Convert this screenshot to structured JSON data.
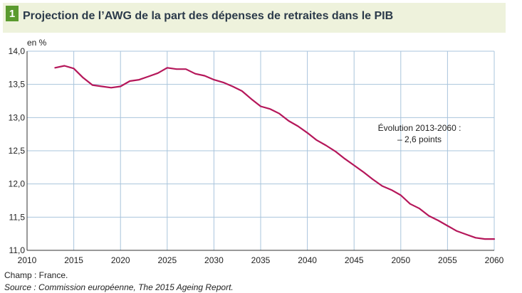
{
  "header": {
    "number": "1",
    "title": "Projection de l’AWG de la part des dépenses de retraites dans le PIB"
  },
  "chart_data": {
    "type": "line",
    "ylabel": "en %",
    "xlim": [
      2010,
      2060
    ],
    "ylim": [
      11.0,
      14.0
    ],
    "x_ticks": [
      2010,
      2015,
      2020,
      2025,
      2030,
      2035,
      2040,
      2045,
      2050,
      2055,
      2060
    ],
    "y_ticks": [
      11.0,
      11.5,
      12.0,
      12.5,
      13.0,
      13.5,
      14.0
    ],
    "y_tick_labels": [
      "11,0",
      "11,5",
      "12,0",
      "12,5",
      "13,0",
      "13,5",
      "14,0"
    ],
    "grid": true,
    "line_color": "#b5175a",
    "annotation": {
      "line1": "Évolution 2013-2060  :",
      "line2": "– 2,6 points",
      "x": 2052,
      "y": 12.8
    },
    "series": [
      {
        "x": [
          2013,
          2014,
          2015,
          2016,
          2017,
          2018,
          2019,
          2020,
          2021,
          2022,
          2023,
          2024,
          2025,
          2026,
          2027,
          2028,
          2029,
          2030,
          2031,
          2032,
          2033,
          2034,
          2035,
          2036,
          2037,
          2038,
          2039,
          2040,
          2041,
          2042,
          2043,
          2044,
          2045,
          2046,
          2047,
          2048,
          2049,
          2050,
          2051,
          2052,
          2053,
          2054,
          2055,
          2056,
          2057,
          2058,
          2059,
          2060
        ],
        "values": [
          13.75,
          13.78,
          13.74,
          13.6,
          13.49,
          13.47,
          13.45,
          13.47,
          13.55,
          13.57,
          13.62,
          13.67,
          13.75,
          13.73,
          13.73,
          13.66,
          13.63,
          13.57,
          13.53,
          13.47,
          13.4,
          13.28,
          13.17,
          13.13,
          13.06,
          12.95,
          12.87,
          12.77,
          12.66,
          12.58,
          12.49,
          12.38,
          12.28,
          12.18,
          12.07,
          11.97,
          11.91,
          11.83,
          11.7,
          11.63,
          11.52,
          11.45,
          11.37,
          11.29,
          11.24,
          11.19,
          11.17,
          11.17
        ]
      }
    ]
  },
  "footer": {
    "champ": "Champ : France.",
    "source": "Source : Commission européenne, The 2015 Ageing Report."
  }
}
